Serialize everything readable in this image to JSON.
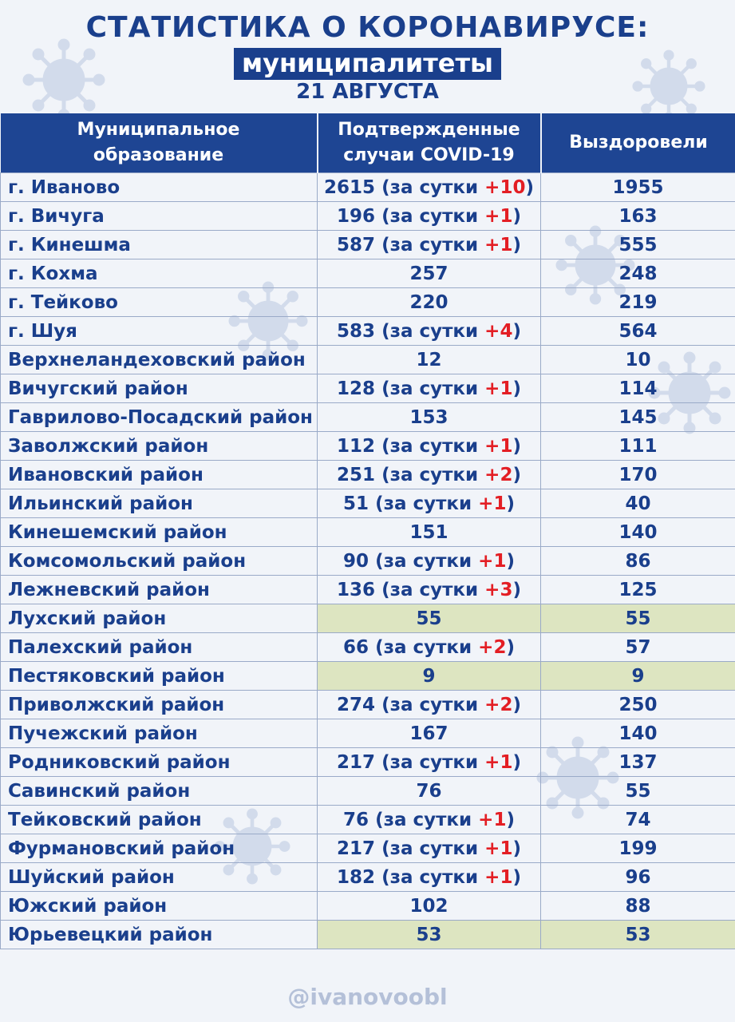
{
  "title": "СТАТИСТИКА О КОРОНАВИРУСЕ:",
  "subtitle": "муниципалитеты",
  "date": "21 АВГУСТА",
  "table": {
    "headers": {
      "municipality_line1": "Муниципальное",
      "municipality_line2": "образование",
      "confirmed_line1": "Подтвержденные",
      "confirmed_line2": "случаи COVID-19",
      "recovered": "Выздоровели"
    },
    "daily_prefix": "(за сутки ",
    "daily_suffix": ")",
    "rows": [
      {
        "name": "г. Иваново",
        "confirmed": "2615",
        "delta": "+10",
        "recovered": "1955",
        "highlight": false
      },
      {
        "name": "г. Вичуга",
        "confirmed": "196",
        "delta": "+1",
        "recovered": "163",
        "highlight": false
      },
      {
        "name": "г. Кинешма",
        "confirmed": "587",
        "delta": "+1",
        "recovered": "555",
        "highlight": false
      },
      {
        "name": "г. Кохма",
        "confirmed": "257",
        "delta": "",
        "recovered": "248",
        "highlight": false
      },
      {
        "name": "г. Тейково",
        "confirmed": "220",
        "delta": "",
        "recovered": "219",
        "highlight": false
      },
      {
        "name": "г. Шуя",
        "confirmed": "583",
        "delta": "+4",
        "recovered": "564",
        "highlight": false
      },
      {
        "name": "Верхнеландеховский район",
        "confirmed": "12",
        "delta": "",
        "recovered": "10",
        "highlight": false
      },
      {
        "name": "Вичугский район",
        "confirmed": "128",
        "delta": "+1",
        "recovered": "114",
        "highlight": false
      },
      {
        "name": "Гаврилово-Посадский район",
        "confirmed": "153",
        "delta": "",
        "recovered": "145",
        "highlight": false
      },
      {
        "name": "Заволжский район",
        "confirmed": "112",
        "delta": "+1",
        "recovered": "111",
        "highlight": false
      },
      {
        "name": "Ивановский район",
        "confirmed": "251",
        "delta": "+2",
        "recovered": "170",
        "highlight": false
      },
      {
        "name": "Ильинский район",
        "confirmed": "51",
        "delta": "+1",
        "recovered": "40",
        "highlight": false
      },
      {
        "name": "Кинешемский район",
        "confirmed": "151",
        "delta": "",
        "recovered": "140",
        "highlight": false
      },
      {
        "name": "Комсомольский район",
        "confirmed": "90",
        "delta": "+1",
        "recovered": "86",
        "highlight": false
      },
      {
        "name": "Лежневский район",
        "confirmed": "136",
        "delta": "+3",
        "recovered": "125",
        "highlight": false
      },
      {
        "name": "Лухский район",
        "confirmed": "55",
        "delta": "",
        "recovered": "55",
        "highlight": true
      },
      {
        "name": "Палехский район",
        "confirmed": "66",
        "delta": "+2",
        "recovered": "57",
        "highlight": false
      },
      {
        "name": "Пестяковский район",
        "confirmed": "9",
        "delta": "",
        "recovered": "9",
        "highlight": true
      },
      {
        "name": "Приволжский район",
        "confirmed": "274",
        "delta": "+2",
        "recovered": "250",
        "highlight": false
      },
      {
        "name": "Пучежский район",
        "confirmed": "167",
        "delta": "",
        "recovered": "140",
        "highlight": false
      },
      {
        "name": "Родниковский район",
        "confirmed": "217",
        "delta": "+1",
        "recovered": "137",
        "highlight": false
      },
      {
        "name": "Савинский район",
        "confirmed": "76",
        "delta": "",
        "recovered": "55",
        "highlight": false
      },
      {
        "name": "Тейковский район",
        "confirmed": "76",
        "delta": "+1",
        "recovered": "74",
        "highlight": false
      },
      {
        "name": "Фурмановский район",
        "confirmed": "217",
        "delta": "+1",
        "recovered": "199",
        "highlight": false
      },
      {
        "name": "Шуйский район",
        "confirmed": "182",
        "delta": "+1",
        "recovered": "96",
        "highlight": false
      },
      {
        "name": "Южский район",
        "confirmed": "102",
        "delta": "",
        "recovered": "88",
        "highlight": false
      },
      {
        "name": "Юрьевецкий район",
        "confirmed": "53",
        "delta": "",
        "recovered": "53",
        "highlight": true
      }
    ]
  },
  "footer": "@ivanovoobl",
  "colors": {
    "primary": "#1a3f8c",
    "header_bg": "#1e4593",
    "delta": "#e31e24",
    "highlight": "#dde5c1",
    "background": "#f1f4f9",
    "footer": "#b4c0d8"
  },
  "decorations": [
    "virus-icon"
  ]
}
